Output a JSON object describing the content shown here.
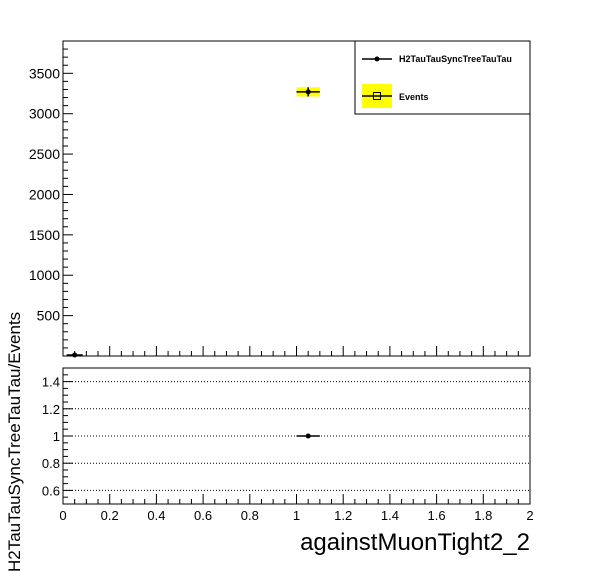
{
  "chart_data": [
    {
      "type": "scatter",
      "panel": "top",
      "xlim": [
        0,
        2
      ],
      "ylim": [
        0,
        3900
      ],
      "y_ticks": [
        500,
        1000,
        1500,
        2000,
        2500,
        3000,
        3500
      ],
      "legend": {
        "placement": "top-right",
        "entries": [
          "H2TauTauSyncTreeTauTau",
          "Events"
        ]
      },
      "series": [
        {
          "name": "H2TauTauSyncTreeTauTau",
          "points": [
            {
              "x": 0.05,
              "y": 0
            },
            {
              "x": 1.05,
              "y": 3270,
              "xerr": 0.05,
              "yerr": 57
            }
          ],
          "color": "#000000"
        },
        {
          "name": "Events",
          "band": {
            "x": 1.05,
            "xerr": 0.05,
            "y": 3270,
            "yerr": 57
          },
          "fill": "#ffff00"
        }
      ]
    },
    {
      "type": "scatter",
      "panel": "ratio",
      "xlim": [
        0,
        2
      ],
      "ylim": [
        0.5,
        1.5
      ],
      "x_ticks": [
        "0",
        "0.2",
        "0.4",
        "0.6",
        "0.8",
        "1",
        "1.2",
        "1.4",
        "1.6",
        "1.8",
        "2"
      ],
      "y_ticks": [
        "0.6",
        "0.8",
        "1",
        "1.2",
        "1.4"
      ],
      "grid": "horizontal-dotted",
      "xlabel": "againstMuonTight2_2",
      "ylabel": "H2TauTauSyncTreeTauTau/Events",
      "points": [
        {
          "x": 1.05,
          "y": 1.0,
          "xerr": 0.05,
          "yerr": 0.003
        }
      ]
    }
  ]
}
